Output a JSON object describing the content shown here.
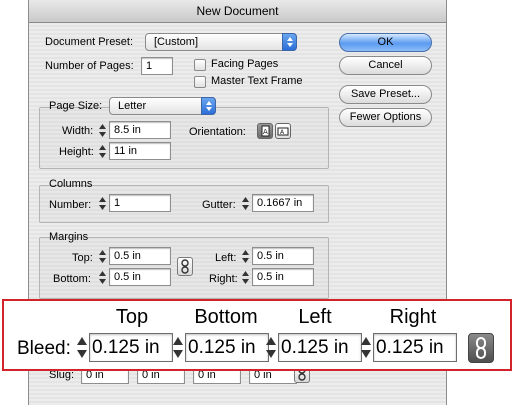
{
  "dialog": {
    "title": "New Document",
    "document_preset": {
      "label": "Document Preset:",
      "value": "[Custom]"
    },
    "number_of_pages": {
      "label": "Number of Pages:",
      "value": "1"
    },
    "facing_pages": {
      "label": "Facing Pages",
      "checked": false
    },
    "master_text_frame": {
      "label": "Master Text Frame",
      "checked": false
    },
    "buttons": {
      "ok": "OK",
      "cancel": "Cancel",
      "save_preset": "Save Preset...",
      "fewer_options": "Fewer Options"
    },
    "page_size": {
      "label": "Page Size:",
      "value": "Letter",
      "width_label": "Width:",
      "width_value": "8.5 in",
      "height_label": "Height:",
      "height_value": "11 in",
      "orientation_label": "Orientation:",
      "orientation_selected": "portrait"
    },
    "columns": {
      "title": "Columns",
      "number_label": "Number:",
      "number_value": "1",
      "gutter_label": "Gutter:",
      "gutter_value": "0.1667 in"
    },
    "margins": {
      "title": "Margins",
      "top_label": "Top:",
      "top_value": "0.5 in",
      "bottom_label": "Bottom:",
      "bottom_value": "0.5 in",
      "left_label": "Left:",
      "left_value": "0.5 in",
      "right_label": "Right:",
      "right_value": "0.5 in"
    },
    "slug": {
      "label": "Slug:",
      "top_value": "0 in",
      "bottom_value": "0 in",
      "left_value": "0 in",
      "right_value": "0 in"
    }
  },
  "bleed_callout": {
    "label": "Bleed:",
    "columns": [
      "Top",
      "Bottom",
      "Left",
      "Right"
    ],
    "top_value": "0.125 in",
    "bottom_value": "0.125 in",
    "left_value": "0.125 in",
    "right_value": "0.125 in",
    "border_color": "#d2232a"
  },
  "icons": {
    "stepper": "stepper-arrows-icon",
    "chain": "chain-link-icon",
    "orientation_portrait": "portrait-orientation-icon",
    "orientation_landscape": "landscape-orientation-icon"
  }
}
